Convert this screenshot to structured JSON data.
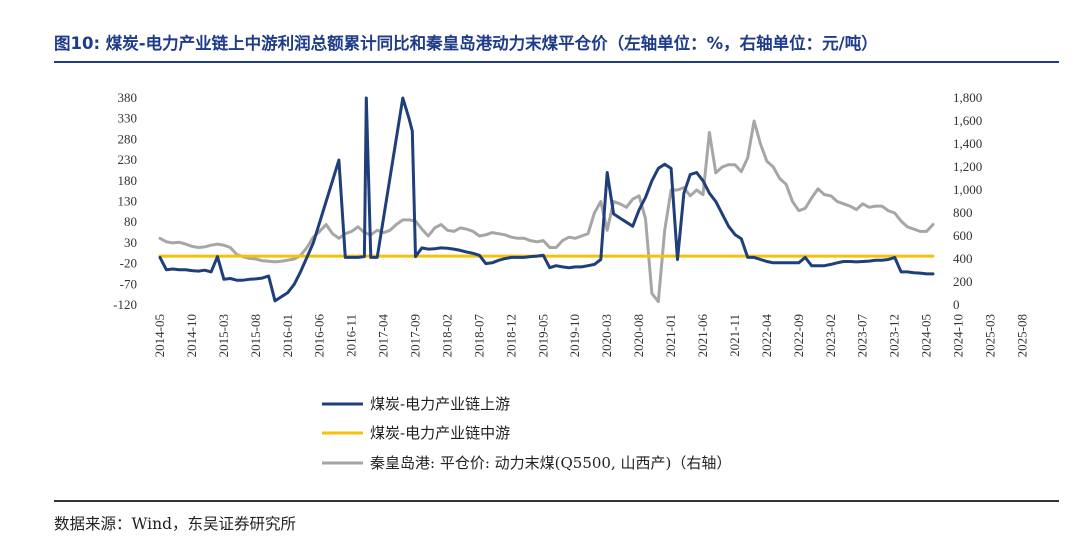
{
  "title": "图10: 煤炭-电力产业链上中游利润总额累计同比和秦皇岛港动力末煤平仓价（左轴单位：%，右轴单位：元/吨）",
  "source": "数据来源：Wind，东吴证券研究所",
  "chart_data": {
    "type": "line",
    "title": "煤炭-电力产业链上中游利润总额累计同比和秦皇岛港动力末煤平仓价",
    "left_axis": {
      "unit": "%",
      "ylim": [
        -120,
        380
      ],
      "ticks": [
        "380",
        "330",
        "280",
        "230",
        "180",
        "130",
        "80",
        "30",
        "-20",
        "-70",
        "-120"
      ]
    },
    "right_axis": {
      "unit": "元/吨",
      "ylim": [
        0,
        1800
      ],
      "ticks": [
        "1,800",
        "1,600",
        "1,400",
        "1,200",
        "1,000",
        "800",
        "600",
        "400",
        "200",
        "0"
      ]
    },
    "x_ticks": [
      "2014-05",
      "2014-10",
      "2015-03",
      "2015-08",
      "2016-01",
      "2016-06",
      "2016-11",
      "2017-04",
      "2017-09",
      "2018-02",
      "2018-07",
      "2018-12",
      "2019-05",
      "2019-10",
      "2020-03",
      "2020-08",
      "2021-01",
      "2021-06",
      "2021-11",
      "2022-04",
      "2022-09",
      "2023-02",
      "2023-07",
      "2023-12",
      "2024-05",
      "2024-10",
      "2025-03",
      "2025-08"
    ],
    "series": [
      {
        "name": "煤炭-电力产业链上游",
        "axis": "left",
        "color": "#1f3f7a",
        "points": [
          [
            0,
            -5
          ],
          [
            1,
            -35
          ],
          [
            2,
            -33
          ],
          [
            3,
            -35
          ],
          [
            4,
            -35
          ],
          [
            5,
            -37
          ],
          [
            6,
            -38
          ],
          [
            7,
            -36
          ],
          [
            8,
            -40
          ],
          [
            9,
            -3
          ],
          [
            10,
            -58
          ],
          [
            11,
            -56
          ],
          [
            12,
            -60
          ],
          [
            13,
            -60
          ],
          [
            14,
            -58
          ],
          [
            15,
            -57
          ],
          [
            16,
            -55
          ],
          [
            17,
            -50
          ],
          [
            18,
            -110
          ],
          [
            19,
            -100
          ],
          [
            20,
            -90
          ],
          [
            21,
            -70
          ],
          [
            22,
            -40
          ],
          [
            23,
            -5
          ],
          [
            24,
            30
          ],
          [
            25,
            80
          ],
          [
            26,
            130
          ],
          [
            27,
            180
          ],
          [
            28,
            230
          ],
          [
            29,
            -5
          ],
          [
            30,
            -5
          ],
          [
            31,
            -5
          ],
          [
            32,
            -3
          ],
          [
            32.3,
            380
          ],
          [
            33,
            -5
          ],
          [
            34,
            -5
          ],
          [
            38,
            380
          ],
          [
            39,
            330
          ],
          [
            39.5,
            300
          ],
          [
            40,
            -3
          ],
          [
            41,
            18
          ],
          [
            42,
            15
          ],
          [
            43,
            16
          ],
          [
            44,
            18
          ],
          [
            45,
            17
          ],
          [
            46,
            15
          ],
          [
            47,
            12
          ],
          [
            48,
            8
          ],
          [
            49,
            5
          ],
          [
            50,
            0
          ],
          [
            51,
            -20
          ],
          [
            52,
            -18
          ],
          [
            53,
            -12
          ],
          [
            54,
            -8
          ],
          [
            55,
            -5
          ],
          [
            56,
            -5
          ],
          [
            57,
            -5
          ],
          [
            58,
            -3
          ],
          [
            59,
            -2
          ],
          [
            60,
            0
          ],
          [
            61,
            -30
          ],
          [
            62,
            -25
          ],
          [
            63,
            -28
          ],
          [
            64,
            -30
          ],
          [
            65,
            -28
          ],
          [
            66,
            -28
          ],
          [
            67,
            -25
          ],
          [
            68,
            -22
          ],
          [
            69,
            -10
          ],
          [
            70,
            200
          ],
          [
            71,
            100
          ],
          [
            72,
            90
          ],
          [
            73,
            80
          ],
          [
            74,
            70
          ],
          [
            75,
            110
          ],
          [
            76,
            140
          ],
          [
            77,
            180
          ],
          [
            78,
            210
          ],
          [
            79,
            220
          ],
          [
            80,
            210
          ],
          [
            81,
            -10
          ],
          [
            82,
            150
          ],
          [
            83,
            195
          ],
          [
            84,
            200
          ],
          [
            85,
            180
          ],
          [
            86,
            150
          ],
          [
            87,
            130
          ],
          [
            88,
            100
          ],
          [
            89,
            70
          ],
          [
            90,
            50
          ],
          [
            91,
            40
          ],
          [
            92,
            -5
          ],
          [
            93,
            -5
          ],
          [
            94,
            -10
          ],
          [
            95,
            -15
          ],
          [
            96,
            -18
          ],
          [
            97,
            -18
          ],
          [
            98,
            -18
          ],
          [
            99,
            -18
          ],
          [
            100,
            -18
          ],
          [
            101,
            -5
          ],
          [
            102,
            -25
          ],
          [
            103,
            -25
          ],
          [
            104,
            -25
          ],
          [
            105,
            -22
          ],
          [
            106,
            -18
          ],
          [
            107,
            -15
          ],
          [
            108,
            -15
          ],
          [
            109,
            -16
          ],
          [
            110,
            -15
          ],
          [
            111,
            -14
          ],
          [
            112,
            -12
          ],
          [
            113,
            -12
          ],
          [
            114,
            -10
          ],
          [
            115,
            -5
          ],
          [
            116,
            -40
          ],
          [
            117,
            -40
          ],
          [
            118,
            -42
          ],
          [
            119,
            -43
          ],
          [
            120,
            -45
          ],
          [
            121,
            -45
          ]
        ]
      },
      {
        "name": "煤炭-电力产业链中游",
        "axis": "left",
        "color": "#f4c10b",
        "points": [
          [
            0,
            -2
          ],
          [
            121,
            -2
          ]
        ]
      },
      {
        "name": "秦皇岛港: 平仓价: 动力末煤(Q5500, 山西产)（右轴）",
        "axis": "right",
        "color": "#a6a6a6",
        "points": [
          [
            0,
            580
          ],
          [
            1,
            550
          ],
          [
            2,
            540
          ],
          [
            3,
            545
          ],
          [
            4,
            530
          ],
          [
            5,
            510
          ],
          [
            6,
            500
          ],
          [
            7,
            505
          ],
          [
            8,
            520
          ],
          [
            9,
            530
          ],
          [
            10,
            520
          ],
          [
            11,
            500
          ],
          [
            12,
            440
          ],
          [
            13,
            420
          ],
          [
            14,
            405
          ],
          [
            15,
            400
          ],
          [
            16,
            385
          ],
          [
            17,
            380
          ],
          [
            18,
            375
          ],
          [
            19,
            380
          ],
          [
            20,
            390
          ],
          [
            21,
            400
          ],
          [
            22,
            430
          ],
          [
            23,
            500
          ],
          [
            24,
            590
          ],
          [
            25,
            640
          ],
          [
            26,
            700
          ],
          [
            27,
            620
          ],
          [
            28,
            580
          ],
          [
            29,
            620
          ],
          [
            30,
            640
          ],
          [
            31,
            680
          ],
          [
            32,
            630
          ],
          [
            33,
            610
          ],
          [
            34,
            650
          ],
          [
            35,
            630
          ],
          [
            36,
            650
          ],
          [
            37,
            700
          ],
          [
            38,
            740
          ],
          [
            39,
            740
          ],
          [
            40,
            730
          ],
          [
            41,
            660
          ],
          [
            42,
            600
          ],
          [
            43,
            670
          ],
          [
            44,
            700
          ],
          [
            45,
            650
          ],
          [
            46,
            640
          ],
          [
            47,
            670
          ],
          [
            48,
            660
          ],
          [
            49,
            640
          ],
          [
            50,
            600
          ],
          [
            51,
            610
          ],
          [
            52,
            630
          ],
          [
            53,
            620
          ],
          [
            54,
            610
          ],
          [
            55,
            590
          ],
          [
            56,
            580
          ],
          [
            57,
            580
          ],
          [
            58,
            560
          ],
          [
            59,
            550
          ],
          [
            60,
            560
          ],
          [
            61,
            500
          ],
          [
            62,
            500
          ],
          [
            63,
            560
          ],
          [
            64,
            590
          ],
          [
            65,
            580
          ],
          [
            66,
            600
          ],
          [
            67,
            620
          ],
          [
            68,
            800
          ],
          [
            69,
            900
          ],
          [
            70,
            650
          ],
          [
            71,
            900
          ],
          [
            72,
            880
          ],
          [
            73,
            850
          ],
          [
            74,
            920
          ],
          [
            75,
            950
          ],
          [
            76,
            750
          ],
          [
            77,
            100
          ],
          [
            78,
            30
          ],
          [
            79,
            650
          ],
          [
            80,
            1000
          ],
          [
            81,
            1000
          ],
          [
            82,
            1020
          ],
          [
            83,
            950
          ],
          [
            84,
            1000
          ],
          [
            85,
            960
          ],
          [
            86,
            1500
          ],
          [
            87,
            1150
          ],
          [
            88,
            1200
          ],
          [
            89,
            1220
          ],
          [
            90,
            1220
          ],
          [
            91,
            1160
          ],
          [
            92,
            1280
          ],
          [
            93,
            1600
          ],
          [
            94,
            1400
          ],
          [
            95,
            1250
          ],
          [
            96,
            1200
          ],
          [
            97,
            1100
          ],
          [
            98,
            1050
          ],
          [
            99,
            900
          ],
          [
            100,
            820
          ],
          [
            101,
            840
          ],
          [
            102,
            930
          ],
          [
            103,
            1010
          ],
          [
            104,
            960
          ],
          [
            105,
            950
          ],
          [
            106,
            900
          ],
          [
            107,
            880
          ],
          [
            108,
            860
          ],
          [
            109,
            830
          ],
          [
            110,
            880
          ],
          [
            111,
            850
          ],
          [
            112,
            860
          ],
          [
            113,
            860
          ],
          [
            114,
            820
          ],
          [
            115,
            800
          ],
          [
            116,
            730
          ],
          [
            117,
            680
          ],
          [
            118,
            660
          ],
          [
            119,
            640
          ],
          [
            120,
            640
          ],
          [
            121,
            700
          ]
        ]
      }
    ],
    "legend": [
      "煤炭-电力产业链上游",
      "煤炭-电力产业链中游",
      "秦皇岛港: 平仓价: 动力末煤(Q5500, 山西产)（右轴）"
    ]
  }
}
